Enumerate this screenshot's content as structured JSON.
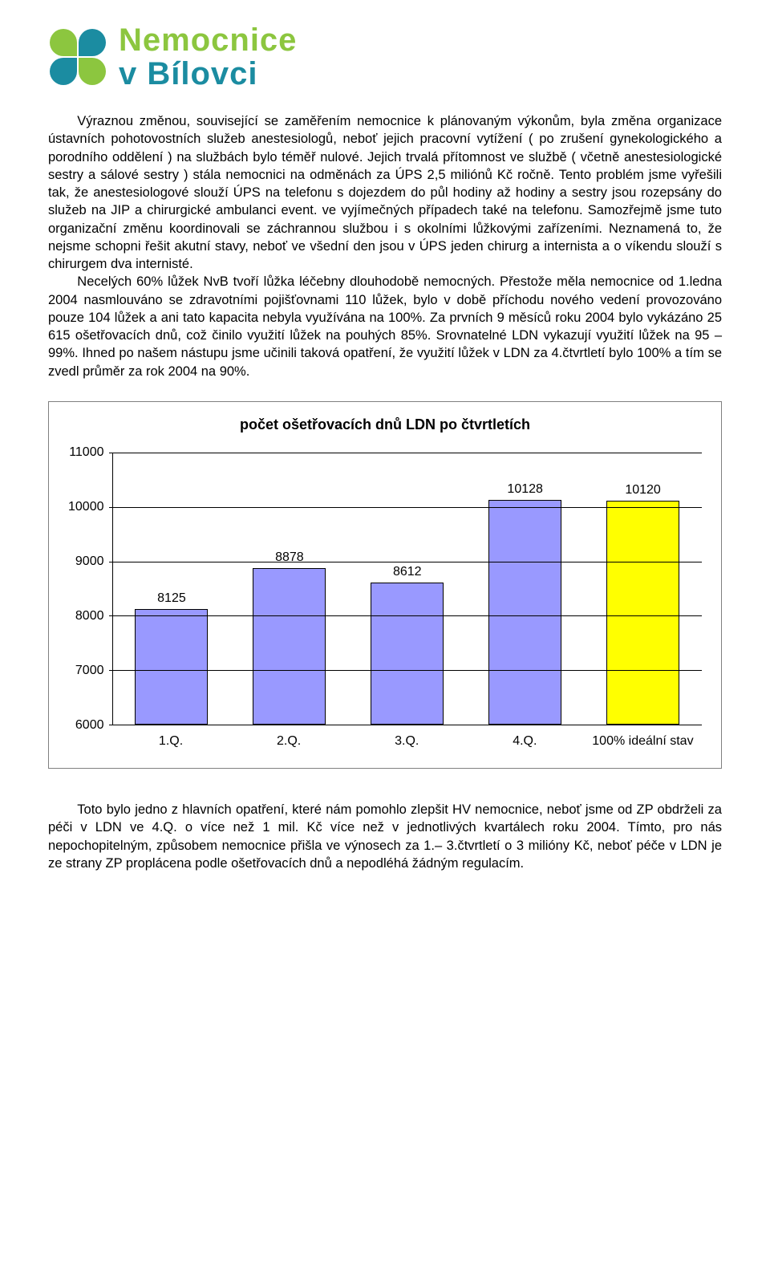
{
  "logo": {
    "line1": "Nemocnice",
    "line2": "v Bílovci",
    "colors": {
      "green": "#8cc63f",
      "teal": "#1b8ca1"
    }
  },
  "body_paragraphs": [
    "Výraznou změnou, související se zaměřením nemocnice k plánovaným výkonům, byla změna organizace ústavních pohotovostních služeb anestesiologů, neboť jejich pracovní vytížení ( po zrušení gynekologického a porodního oddělení ) na službách bylo téměř nulové. Jejich trvalá přítomnost ve službě ( včetně anestesiologické sestry a sálové sestry ) stála nemocnici na odměnách za ÚPS 2,5 miliónů Kč ročně. Tento problém jsme vyřešili tak, že anestesiologové slouží ÚPS na telefonu s dojezdem do půl hodiny až hodiny a sestry jsou rozepsány do služeb na JIP a chirurgické ambulanci event. ve vyjímečných případech také na telefonu. Samozřejmě jsme tuto organizační změnu koordinovali se záchrannou službou i s okolními lůžkovými zařízeními. Neznamená to, že nejsme schopni řešit akutní stavy, neboť ve všední den jsou v ÚPS jeden chirurg a internista a o víkendu slouží s chirurgem dva internisté.",
    "Necelých 60% lůžek NvB tvoří lůžka léčebny dlouhodobě nemocných. Přestože měla nemocnice od 1.ledna 2004 nasmlouváno se zdravotními pojišťovnami 110 lůžek, bylo v době příchodu nového vedení provozováno pouze 104 lůžek a ani tato kapacita nebyla využívána na 100%. Za prvních 9 měsíců roku 2004 bylo vykázáno 25 615 ošetřovacích dnů, což činilo využití lůžek na pouhých  85%. Srovnatelné LDN vykazují využití lůžek na 95 – 99%. Ihned po našem nástupu jsme učinili taková opatření, že využití lůžek v LDN za 4.čtvrtletí bylo 100% a tím se zvedl průměr za rok 2004 na 90%."
  ],
  "chart": {
    "type": "bar",
    "title": "počet ošetřovacích dnů LDN po čtvrtletích",
    "categories": [
      "1.Q.",
      "2.Q.",
      "3.Q.",
      "4.Q.",
      "100% ideální stav"
    ],
    "values": [
      8125,
      8878,
      8612,
      10128,
      10120
    ],
    "bar_colors": [
      "#9999ff",
      "#9999ff",
      "#9999ff",
      "#9999ff",
      "#ffff00"
    ],
    "bar_border": "#000000",
    "y_min": 6000,
    "y_max": 11000,
    "y_tick_step": 1000,
    "y_ticks": [
      11000,
      10000,
      9000,
      8000,
      7000,
      6000
    ],
    "grid_color": "#000000",
    "background_color": "#ffffff",
    "title_fontsize": 18,
    "label_fontsize": 16,
    "bar_width": 0.62
  },
  "footer_paragraph": "Toto bylo jedno z hlavních opatření, které nám pomohlo zlepšit HV nemocnice, neboť jsme od ZP obdrželi za péči v LDN ve 4.Q.  o více než 1 mil. Kč více než v jednotlivých kvartálech roku 2004. Tímto, pro nás nepochopitelným, způsobem nemocnice přišla ve výnosech za 1.– 3.čtvrtletí o 3 milióny Kč, neboť péče v LDN je ze strany ZP proplácena podle ošetřovacích dnů a nepodléhá žádným regulacím."
}
